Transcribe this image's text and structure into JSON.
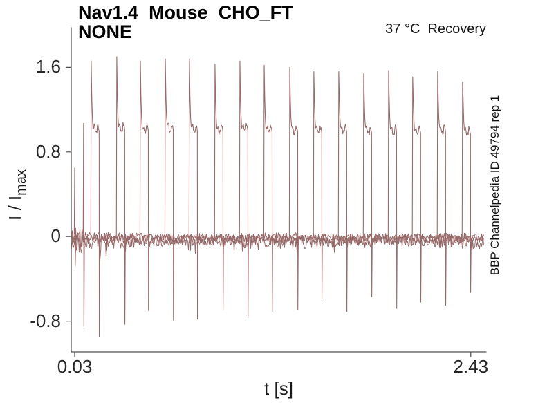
{
  "chart_data": {
    "type": "line",
    "title_line1": "Nav1.4  Mouse  CHO_FT",
    "title_line2": "NONE",
    "corner_annotation": "37 °C  Recovery",
    "right_label": "BBP Channelpedia ID 49794 rep 1",
    "xlabel": "t [s]",
    "ylabel_main": "I / I",
    "ylabel_sub": "max",
    "x_ticks": [
      {
        "value": 0.03,
        "label": "0.03"
      },
      {
        "value": 2.43,
        "label": "2.43"
      }
    ],
    "y_ticks": [
      {
        "value": 1.6,
        "label": "1.6"
      },
      {
        "value": 0.8,
        "label": "0.8"
      },
      {
        "value": 0,
        "label": "0"
      },
      {
        "value": -0.8,
        "label": "-0.8"
      }
    ],
    "xlim": [
      0.009,
      2.523
    ],
    "ylim": [
      -1.09,
      1.975
    ],
    "trace_color": "#986a6a",
    "axis_color": "#4d4d4d",
    "grid": false,
    "legend": null,
    "baseline": {
      "mean": -0.02,
      "noise_amplitude": 0.05
    },
    "initial_transient": {
      "t": 0.03,
      "peak": 0.65,
      "trough": -0.28
    },
    "conditioning_pulse": {
      "t": 0.084,
      "top": 1.07,
      "bottom": -0.85
    },
    "pulse_width_s": 0.048,
    "recovery_events": [
      {
        "t": 0.13,
        "peak": 1.66,
        "plateau": 1.03,
        "trough": -0.95
      },
      {
        "t": 0.285,
        "peak": 1.7,
        "plateau": 1.04,
        "trough": -0.83
      },
      {
        "t": 0.428,
        "peak": 1.66,
        "plateau": 1.03,
        "trough": -0.7
      },
      {
        "t": 0.579,
        "peak": 1.68,
        "plateau": 1.04,
        "trough": -0.79
      },
      {
        "t": 0.725,
        "peak": 1.68,
        "plateau": 1.03,
        "trough": -0.78
      },
      {
        "t": 0.88,
        "peak": 1.63,
        "plateau": 1.02,
        "trough": -0.69
      },
      {
        "t": 1.031,
        "peak": 1.66,
        "plateau": 1.03,
        "trough": -0.77
      },
      {
        "t": 1.178,
        "peak": 1.62,
        "plateau": 1.02,
        "trough": -0.71
      },
      {
        "t": 1.333,
        "peak": 1.6,
        "plateau": 1.02,
        "trough": -0.69
      },
      {
        "t": 1.479,
        "peak": 1.56,
        "plateau": 1.01,
        "trough": -0.59
      },
      {
        "t": 1.63,
        "peak": 1.56,
        "plateau": 1.02,
        "trough": -0.71
      },
      {
        "t": 1.781,
        "peak": 1.54,
        "plateau": 1.01,
        "trough": -0.57
      },
      {
        "t": 1.932,
        "peak": 1.57,
        "plateau": 1.02,
        "trough": -0.68
      },
      {
        "t": 2.078,
        "peak": 1.51,
        "plateau": 1.01,
        "trough": -0.62
      },
      {
        "t": 2.229,
        "peak": 1.56,
        "plateau": 1.02,
        "trough": -0.65
      },
      {
        "t": 2.38,
        "peak": 1.46,
        "plateau": 1.0,
        "trough": -0.53
      }
    ]
  }
}
